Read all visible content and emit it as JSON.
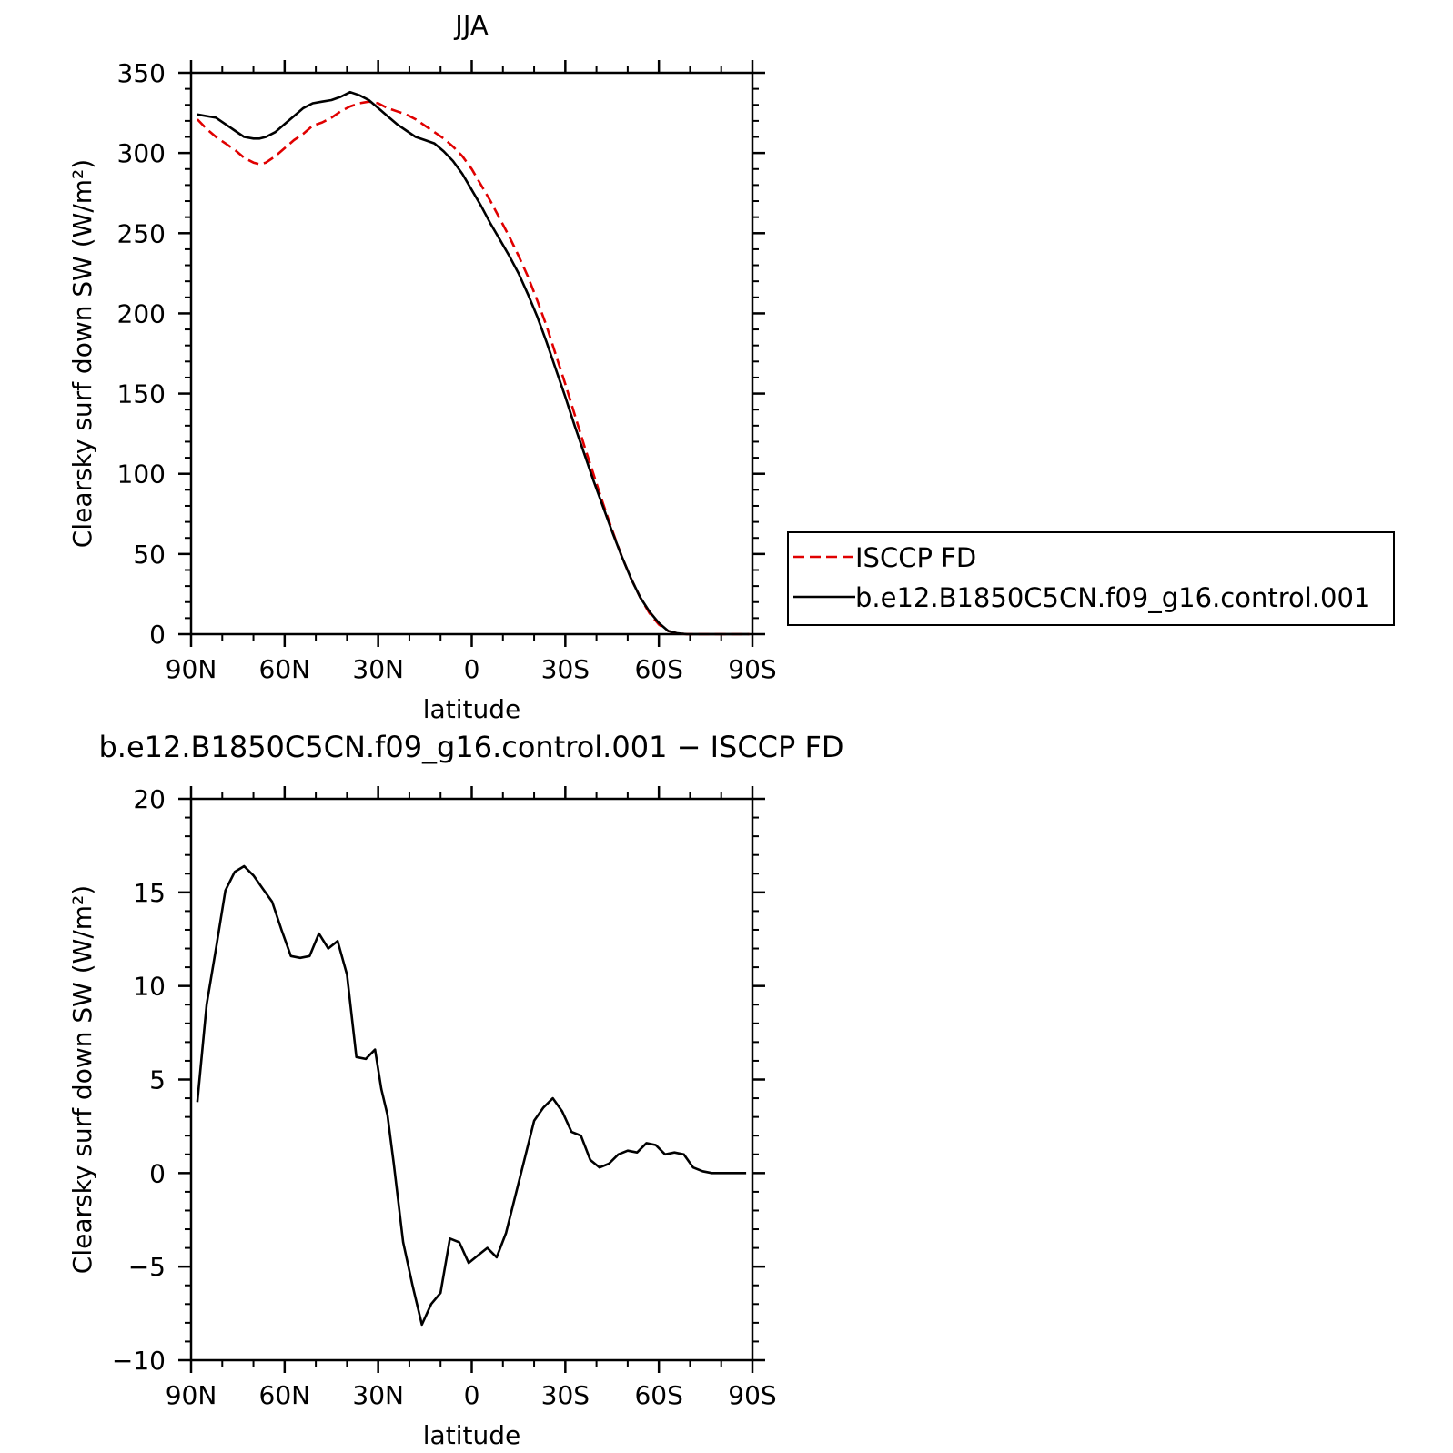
{
  "chart_data": [
    {
      "type": "line",
      "title": "JJA",
      "xlabel": "latitude",
      "ylabel": "Clearsky surf down SW (W/m²)",
      "xlim": [
        90,
        -90
      ],
      "ylim": [
        0,
        350
      ],
      "xticks": [
        {
          "value": 90,
          "label": "90N"
        },
        {
          "value": 60,
          "label": "60N"
        },
        {
          "value": 30,
          "label": "30N"
        },
        {
          "value": 0,
          "label": "0"
        },
        {
          "value": -30,
          "label": "30S"
        },
        {
          "value": -60,
          "label": "60S"
        },
        {
          "value": -90,
          "label": "90S"
        }
      ],
      "yticks": [
        0,
        50,
        100,
        150,
        200,
        250,
        300,
        350
      ],
      "legend_position": "right",
      "series": [
        {
          "name": "ISCCP FD",
          "color": "#e00000",
          "dash": "dashed",
          "x": [
            88,
            85,
            82,
            79,
            76,
            73,
            70,
            68,
            66,
            63,
            60,
            57,
            54,
            51,
            48,
            45,
            42,
            39,
            36,
            33,
            30,
            27,
            24,
            21,
            18,
            15,
            12,
            9,
            6,
            3,
            0,
            -3,
            -6,
            -9,
            -12,
            -15,
            -18,
            -21,
            -24,
            -27,
            -30,
            -33,
            -36,
            -39,
            -42,
            -45,
            -48,
            -51,
            -54,
            -57,
            -60,
            -63,
            -66,
            -69,
            -72,
            -75,
            -78,
            -81,
            -84,
            -87,
            -89
          ],
          "y": [
            321,
            315,
            310,
            306,
            302,
            297,
            294,
            293,
            294,
            298,
            303,
            308,
            312,
            317,
            319,
            322,
            326,
            329,
            331,
            332,
            331,
            328,
            326,
            324,
            321,
            317,
            313,
            309,
            304,
            298,
            290,
            280,
            270,
            259,
            248,
            236,
            223,
            208,
            192,
            174,
            156,
            137,
            118,
            100,
            82,
            65,
            49,
            35,
            23,
            13,
            6,
            2,
            0.5,
            0,
            0,
            0,
            0,
            0,
            0,
            0,
            0
          ]
        },
        {
          "name": "b.e12.B1850C5CN.f09_g16.control.001",
          "color": "#000000",
          "dash": "solid",
          "x": [
            88,
            85,
            82,
            79,
            76,
            73,
            70,
            68,
            66,
            63,
            60,
            57,
            54,
            51,
            48,
            45,
            42,
            39,
            36,
            33,
            30,
            27,
            24,
            21,
            18,
            15,
            12,
            9,
            6,
            3,
            0,
            -3,
            -6,
            -9,
            -12,
            -15,
            -18,
            -21,
            -24,
            -27,
            -30,
            -33,
            -36,
            -39,
            -42,
            -45,
            -48,
            -51,
            -54,
            -57,
            -60,
            -63,
            -66,
            -69,
            -72,
            -75,
            -78,
            -81,
            -84,
            -87,
            -89
          ],
          "y": [
            324,
            323,
            322,
            318,
            314,
            310,
            309,
            309,
            310,
            313,
            318,
            323,
            328,
            331,
            332,
            333,
            335,
            338,
            336,
            333,
            328,
            323,
            318,
            314,
            310,
            308,
            306,
            301,
            295,
            287,
            277,
            267,
            256,
            246,
            236,
            225,
            212,
            198,
            182,
            165,
            148,
            130,
            113,
            96,
            80,
            64,
            49,
            35,
            23,
            14,
            7,
            2,
            0.5,
            0,
            0,
            0,
            0,
            0,
            0,
            0,
            0
          ]
        }
      ]
    },
    {
      "type": "line",
      "title": "b.e12.B1850C5CN.f09_g16.control.001 − ISCCP FD",
      "xlabel": "latitude",
      "ylabel": "Clearsky surf down SW (W/m²)",
      "xlim": [
        90,
        -90
      ],
      "ylim": [
        -10,
        20
      ],
      "xticks": [
        {
          "value": 90,
          "label": "90N"
        },
        {
          "value": 60,
          "label": "60N"
        },
        {
          "value": 30,
          "label": "30N"
        },
        {
          "value": 0,
          "label": "0"
        },
        {
          "value": -30,
          "label": "30S"
        },
        {
          "value": -60,
          "label": "60S"
        },
        {
          "value": -90,
          "label": "90S"
        }
      ],
      "yticks": [
        -10,
        -5,
        0,
        5,
        10,
        15,
        20
      ],
      "series": [
        {
          "color": "#000000",
          "dash": "solid",
          "x": [
            88,
            85,
            82,
            79,
            76,
            73,
            70,
            67,
            64,
            61,
            58,
            55,
            52,
            49,
            46,
            43,
            40,
            37,
            34,
            31,
            29,
            27,
            25,
            22,
            19,
            16,
            13,
            10,
            7,
            4,
            1,
            -2,
            -5,
            -8,
            -11,
            -14,
            -17,
            -20,
            -23,
            -26,
            -29,
            -32,
            -35,
            -38,
            -41,
            -44,
            -47,
            -50,
            -53,
            -56,
            -59,
            -62,
            -65,
            -68,
            -71,
            -74,
            -77,
            -80,
            -83,
            -86,
            -88
          ],
          "y": [
            3.8,
            9.0,
            12.0,
            15.1,
            16.1,
            16.4,
            15.9,
            15.2,
            14.5,
            13.0,
            11.6,
            11.5,
            11.6,
            12.8,
            12.0,
            12.4,
            10.6,
            6.2,
            6.1,
            6.6,
            4.5,
            3.1,
            0.5,
            -3.7,
            -6.0,
            -8.1,
            -7.0,
            -6.4,
            -3.5,
            -3.7,
            -4.8,
            -4.4,
            -4.0,
            -4.5,
            -3.2,
            -1.2,
            0.8,
            2.8,
            3.5,
            4.0,
            3.3,
            2.2,
            2.0,
            0.7,
            0.3,
            0.5,
            1.0,
            1.2,
            1.1,
            1.6,
            1.5,
            1.0,
            1.1,
            1.0,
            0.3,
            0.1,
            0.0,
            0.0,
            0.0,
            0.0,
            0.0
          ]
        }
      ]
    }
  ]
}
